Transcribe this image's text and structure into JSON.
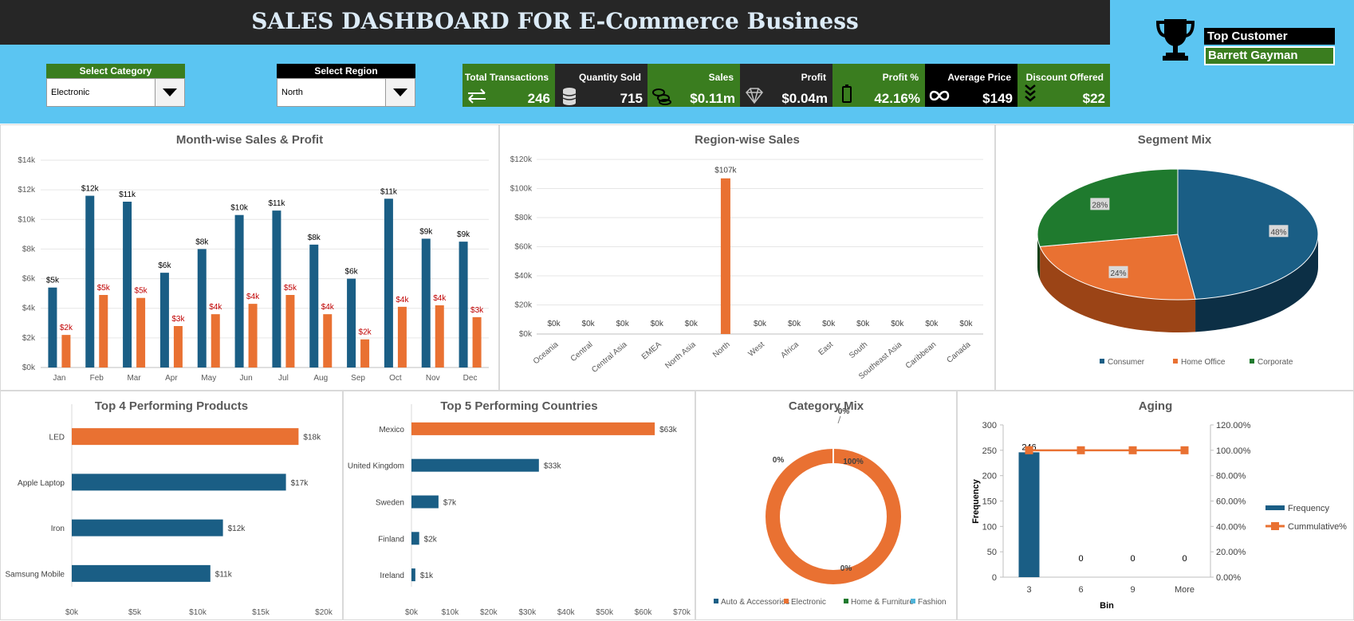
{
  "header": {
    "title": "SALES DASHBOARD FOR E-Commerce Business"
  },
  "filters": {
    "category": {
      "label": "Select Category",
      "value": "Electronic"
    },
    "region": {
      "label": "Select Region",
      "value": "North"
    }
  },
  "kpis": [
    {
      "label": "Total Transactions",
      "value": "246",
      "icon": "arrows-exchange-icon",
      "bg": "#3a7d1f"
    },
    {
      "label": "Quantity Sold",
      "value": "715",
      "icon": "database-icon",
      "bg": "#262626"
    },
    {
      "label": "Sales",
      "value": "$0.11m",
      "icon": "coins-icon",
      "bg": "#3a7d1f"
    },
    {
      "label": "Profit",
      "value": "$0.04m",
      "icon": "diamond-icon",
      "bg": "#262626"
    },
    {
      "label": "Profit %",
      "value": "42.16%",
      "icon": "battery-icon",
      "bg": "#3a7d1f"
    },
    {
      "label": "Average Price",
      "value": "$149",
      "icon": "infinity-icon",
      "bg": "#000000"
    },
    {
      "label": "Discount Offered",
      "value": "$22",
      "icon": "chevrons-down-icon",
      "bg": "#3a7d1f"
    }
  ],
  "top_customer": {
    "label": "Top Customer",
    "value": "Barrett Gayman",
    "icon": "trophy-icon"
  },
  "colors": {
    "blue": "#1a5e85",
    "orange": "#e97132",
    "green": "#1f7a2e",
    "red_label": "#c00000",
    "band": "#5bc5f2"
  },
  "chart_data": [
    {
      "type": "bar",
      "title": "Month-wise Sales & Profit",
      "categories": [
        "Jan",
        "Feb",
        "Mar",
        "Apr",
        "May",
        "Jun",
        "Jul",
        "Aug",
        "Sep",
        "Oct",
        "Nov",
        "Dec"
      ],
      "series": [
        {
          "values": [
            5.4,
            11.6,
            11.2,
            6.4,
            8.0,
            10.3,
            10.6,
            8.3,
            6.0,
            11.4,
            8.7,
            8.5
          ],
          "labels": [
            "$5k",
            "$12k",
            "$11k",
            "$6k",
            "$8k",
            "$10k",
            "$11k",
            "$8k",
            "$6k",
            "$11k",
            "$9k",
            "$9k"
          ]
        },
        {
          "values": [
            2.2,
            4.9,
            4.7,
            2.8,
            3.6,
            4.3,
            4.9,
            3.6,
            1.9,
            4.1,
            4.2,
            3.4
          ],
          "labels": [
            "$2k",
            "$5k",
            "$5k",
            "$3k",
            "$4k",
            "$4k",
            "$5k",
            "$4k",
            "$2k",
            "$4k",
            "$4k",
            "$3k"
          ]
        }
      ],
      "ylim": [
        0,
        14
      ],
      "yticks": [
        "$0k",
        "$2k",
        "$4k",
        "$6k",
        "$8k",
        "$10k",
        "$12k",
        "$14k"
      ]
    },
    {
      "type": "bar",
      "title": "Region-wise Sales",
      "categories": [
        "Oceania",
        "Central",
        "Central Asia",
        "EMEA",
        "North Asia",
        "North",
        "West",
        "Africa",
        "East",
        "South",
        "Southeast Asia",
        "Caribbean",
        "Canada"
      ],
      "values": [
        0,
        0,
        0,
        0,
        0,
        107,
        0,
        0,
        0,
        0,
        0,
        0,
        0
      ],
      "labels": [
        "$0k",
        "$0k",
        "$0k",
        "$0k",
        "$0k",
        "$107k",
        "$0k",
        "$0k",
        "$0k",
        "$0k",
        "$0k",
        "$0k",
        "$0k"
      ],
      "ylim": [
        0,
        120
      ],
      "yticks": [
        "$0k",
        "$20k",
        "$40k",
        "$60k",
        "$80k",
        "$100k",
        "$120k"
      ]
    },
    {
      "type": "pie",
      "title": "Segment Mix",
      "slices": [
        {
          "name": "Consumer",
          "value": 48,
          "label": "48%"
        },
        {
          "name": "Home Office",
          "value": 24,
          "label": "24%"
        },
        {
          "name": "Corporate",
          "value": 28,
          "label": "28%"
        }
      ]
    },
    {
      "type": "bar",
      "title": "Top 4 Performing Products",
      "orientation": "horizontal",
      "categories": [
        "LED",
        "Apple Laptop",
        "Iron",
        "Samsung Mobile"
      ],
      "values": [
        18,
        17,
        12,
        11
      ],
      "labels": [
        "$18k",
        "$17k",
        "$12k",
        "$11k"
      ],
      "xlim": [
        0,
        20
      ],
      "xticks": [
        "$0k",
        "$5k",
        "$10k",
        "$15k",
        "$20k"
      ]
    },
    {
      "type": "bar",
      "title": "Top 5 Performing Countries",
      "orientation": "horizontal",
      "categories": [
        "Mexico",
        "United Kingdom",
        "Sweden",
        "Finland",
        "Ireland"
      ],
      "values": [
        63,
        33,
        7,
        2,
        1
      ],
      "labels": [
        "$63k",
        "$33k",
        "$7k",
        "$2k",
        "$1k"
      ],
      "xlim": [
        0,
        70
      ],
      "xticks": [
        "$0k",
        "$10k",
        "$20k",
        "$30k",
        "$40k",
        "$50k",
        "$60k",
        "$70k"
      ]
    },
    {
      "type": "pie",
      "title": "Category Mix",
      "donut": true,
      "slices": [
        {
          "name": "Auto & Accessories",
          "value": 0,
          "label": "0%"
        },
        {
          "name": "Electronic",
          "value": 100,
          "label": "100%"
        },
        {
          "name": "Home & Furniture",
          "value": 0,
          "label": "0%"
        },
        {
          "name": "Fashion",
          "value": 0,
          "label": "0%"
        }
      ]
    },
    {
      "type": "bar",
      "title": "Aging",
      "categories": [
        "3",
        "6",
        "9",
        "More"
      ],
      "series": [
        {
          "name": "Frequency",
          "values": [
            246,
            0,
            0,
            0
          ],
          "labels": [
            "246",
            "0",
            "0",
            "0"
          ]
        },
        {
          "name": "Cummulative%",
          "values": [
            100,
            100,
            100,
            100
          ],
          "type": "line"
        }
      ],
      "xlabel": "Bin",
      "ylabel": "Frequency",
      "ylim": [
        0,
        300
      ],
      "y2lim": [
        0,
        120
      ],
      "yticks": [
        "0",
        "50",
        "100",
        "150",
        "200",
        "250",
        "300"
      ],
      "y2ticks": [
        "0.00%",
        "20.00%",
        "40.00%",
        "60.00%",
        "80.00%",
        "100.00%",
        "120.00%"
      ]
    }
  ]
}
